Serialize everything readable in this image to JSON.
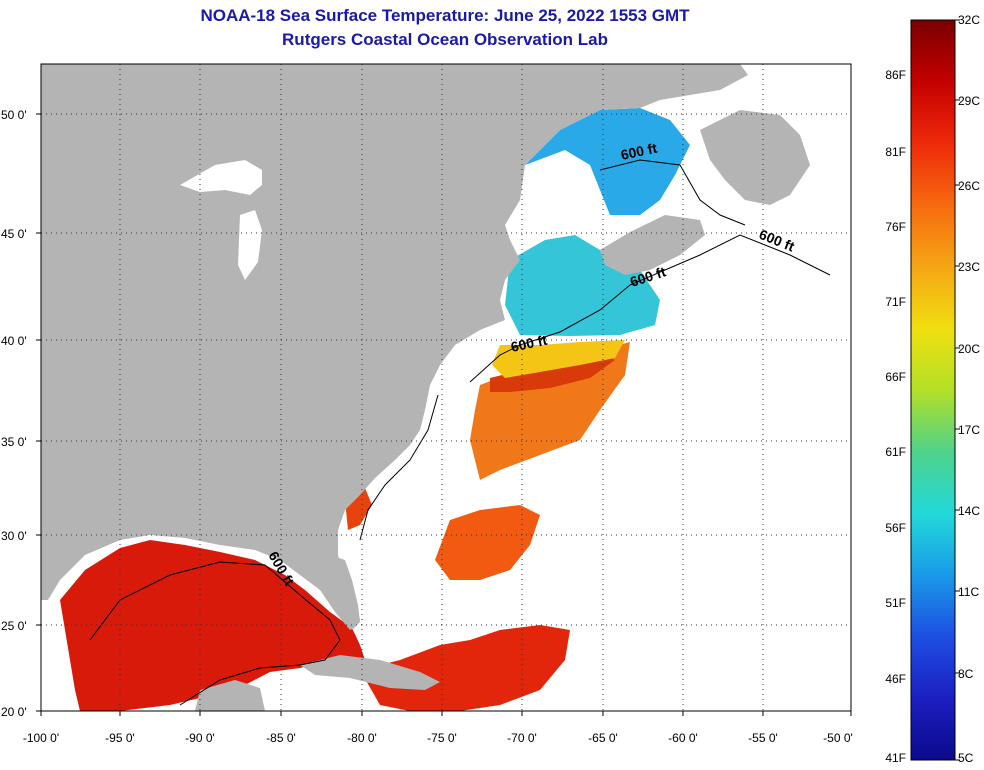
{
  "title": "NOAA-18 Sea Surface Temperature:  June 25, 2022 1553 GMT",
  "subtitle": "Rutgers Coastal Ocean Observation Lab",
  "map": {
    "lon_range": [
      -100,
      -50
    ],
    "lat_range": [
      20,
      52.5
    ],
    "lon_ticks": [
      "-100 0'",
      "-95 0'",
      "-90 0'",
      "-85 0'",
      "-80 0'",
      "-75 0'",
      "-70 0'",
      "-65 0'",
      "-60 0'",
      "-55 0'",
      "-50 0'"
    ],
    "lat_ticks": [
      "50 0'",
      "45 0'",
      "40 0'",
      "35 0'",
      "30 0'",
      "25 0'",
      "20 0'"
    ],
    "contour_labels": [
      "600 ft",
      "600 ft",
      "600 ft",
      "600 ft",
      "600 ft"
    ],
    "land_color": "#b4b4b4",
    "ocean_nodata_color": "#ffffff"
  },
  "colorbar": {
    "celsius_labels": [
      "32C",
      "29C",
      "26C",
      "23C",
      "20C",
      "17C",
      "14C",
      "11C",
      "8C",
      "5C"
    ],
    "fahrenheit_labels": [
      "86F",
      "81F",
      "76F",
      "71F",
      "66F",
      "61F",
      "56F",
      "51F",
      "46F",
      "41F"
    ],
    "colors": [
      "#7a0000",
      "#c40000",
      "#ee2a0a",
      "#f66a0f",
      "#f5a515",
      "#f0df10",
      "#b3e026",
      "#4fd28a",
      "#22d9d9",
      "#1a9ae8",
      "#1d4fe2",
      "#1c1fc0",
      "#0a0a8c"
    ]
  }
}
